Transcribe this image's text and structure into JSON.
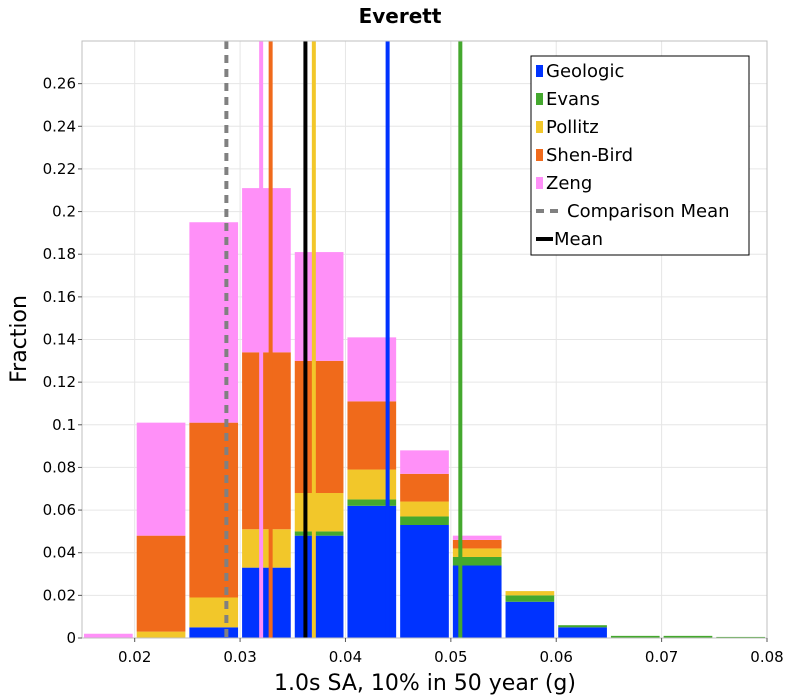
{
  "chart_data": {
    "type": "bar",
    "title": "Everett",
    "xlabel": "1.0s SA, 10% in 50 year (g)",
    "ylabel": "Fraction",
    "xlim": [
      0.015,
      0.08
    ],
    "ylim": [
      0,
      0.28
    ],
    "x_ticks": [
      0.02,
      0.03,
      0.04,
      0.05,
      0.06,
      0.07,
      0.08
    ],
    "x_tick_labels": [
      "0.02",
      "0.03",
      "0.04",
      "0.05",
      "0.06",
      "0.07",
      "0.08"
    ],
    "y_ticks": [
      0,
      0.02,
      0.04,
      0.06,
      0.08,
      0.1,
      0.12,
      0.14,
      0.16,
      0.18,
      0.2,
      0.22,
      0.24,
      0.26
    ],
    "y_tick_labels": [
      "0",
      "0.02",
      "0.04",
      "0.06",
      "0.08",
      "0.1",
      "0.12",
      "0.14",
      "0.16",
      "0.18",
      "0.2",
      "0.22",
      "0.24",
      "0.26"
    ],
    "grid": true,
    "stacked": true,
    "bin_centers": [
      0.0175,
      0.0225,
      0.0275,
      0.0325,
      0.0375,
      0.0425,
      0.0475,
      0.0525,
      0.0575,
      0.0625,
      0.0675,
      0.0725,
      0.0775
    ],
    "bin_width": 0.005,
    "series": [
      {
        "name": "Geologic",
        "color": "#0033ff",
        "values": [
          0,
          0,
          0.005,
          0.033,
          0.048,
          0.062,
          0.053,
          0.034,
          0.017,
          0.005,
          0,
          0,
          0
        ]
      },
      {
        "name": "Evans",
        "color": "#44a82e",
        "values": [
          0,
          0,
          0,
          0,
          0.002,
          0.003,
          0.004,
          0.004,
          0.003,
          0.001,
          0.001,
          0.001,
          0.0005
        ]
      },
      {
        "name": "Pollitz",
        "color": "#f2c72a",
        "values": [
          0,
          0.003,
          0.014,
          0.018,
          0.018,
          0.014,
          0.007,
          0.004,
          0.002,
          0,
          0,
          0,
          0
        ]
      },
      {
        "name": "Shen-Bird",
        "color": "#f06a1b",
        "values": [
          0,
          0.045,
          0.082,
          0.083,
          0.062,
          0.032,
          0.013,
          0.004,
          0,
          0,
          0,
          0,
          0
        ]
      },
      {
        "name": "Zeng",
        "color": "#ff90f8",
        "values": [
          0.002,
          0.053,
          0.094,
          0.077,
          0.051,
          0.03,
          0.011,
          0.002,
          0,
          0,
          0,
          0,
          0
        ]
      }
    ],
    "vertical_lines": [
      {
        "series": "Geologic",
        "x": 0.044,
        "color": "#0033ff",
        "style": "solid"
      },
      {
        "series": "Evans",
        "x": 0.0509,
        "color": "#44a82e",
        "style": "solid"
      },
      {
        "series": "Pollitz",
        "x": 0.037,
        "color": "#f2c72a",
        "style": "solid"
      },
      {
        "series": "Shen-Bird",
        "x": 0.0329,
        "color": "#f06a1b",
        "style": "solid"
      },
      {
        "series": "Zeng",
        "x": 0.032,
        "color": "#ff90f8",
        "style": "solid"
      },
      {
        "series": "Comparison Mean",
        "x": 0.0287,
        "color": "#808080",
        "style": "dashed"
      },
      {
        "series": "Mean",
        "x": 0.0362,
        "color": "#000000",
        "style": "solid"
      }
    ],
    "legend": {
      "placement": "top-right",
      "entries": [
        {
          "label": "Geologic",
          "color": "#0033ff",
          "kind": "box"
        },
        {
          "label": "Evans",
          "color": "#44a82e",
          "kind": "box"
        },
        {
          "label": "Pollitz",
          "color": "#f2c72a",
          "kind": "box"
        },
        {
          "label": "Shen-Bird",
          "color": "#f06a1b",
          "kind": "box"
        },
        {
          "label": "Zeng",
          "color": "#ff90f8",
          "kind": "box"
        },
        {
          "label": "Comparison Mean",
          "color": "#808080",
          "kind": "dashed-line"
        },
        {
          "label": "Mean",
          "color": "#000000",
          "kind": "line"
        }
      ]
    }
  }
}
